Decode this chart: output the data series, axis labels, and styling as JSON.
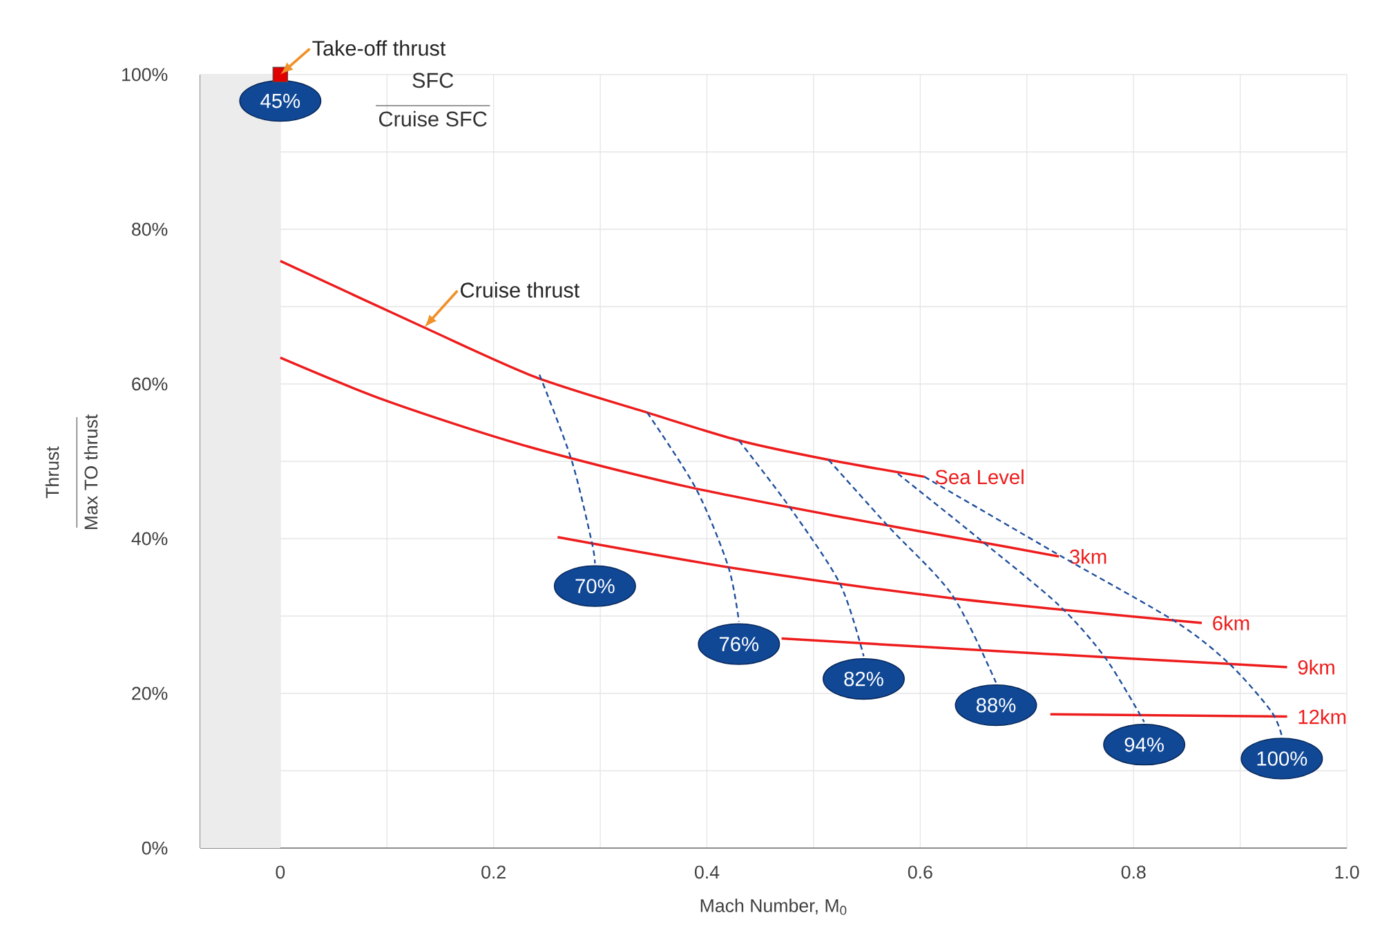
{
  "chart_data": {
    "type": "line",
    "xlabel": "Mach Number, M$_{0}$",
    "ylabel": "Thrust",
    "xlim": [
      -0.075,
      1.0
    ],
    "ylim": [
      0,
      100
    ],
    "xticks": [
      0,
      {
        "value": 0.1,
        "label": null
      },
      0.2,
      {
        "value": 0.3,
        "label": null
      },
      0.4,
      {
        "value": 0.5,
        "label": null
      },
      0.6,
      {
        "value": 0.7,
        "label": null
      },
      0.8,
      {
        "value": 0.9,
        "label": null
      },
      {
        "value": 1.0,
        "label": "1.0"
      }
    ],
    "yticks": [
      {
        "value": 0,
        "label": "0%"
      },
      {
        "value": 10,
        "label": null
      },
      {
        "value": 20,
        "label": "20%"
      },
      {
        "value": 30,
        "label": null
      },
      {
        "value": 40,
        "label": "40%"
      },
      {
        "value": 50,
        "label": null
      },
      {
        "value": 60,
        "label": "60%"
      },
      {
        "value": 70,
        "label": null
      },
      {
        "value": 80,
        "label": "80%"
      },
      {
        "value": 90,
        "label": null
      },
      {
        "value": 100,
        "label": "100%"
      }
    ],
    "grid": true,
    "marker": "none",
    "bands": [
      {
        "axis": "x",
        "from": -0.075,
        "to": 0,
        "color": "#ececec"
      }
    ],
    "series": [
      {
        "name": "Sea Level",
        "color": "#ee1c1c",
        "line_style": "solid",
        "x": [
          0,
          0.135,
          0.239,
          0.344,
          0.43,
          0.514,
          0.604
        ],
        "values": [
          75.9,
          67.3,
          60.9,
          56.3,
          52.7,
          50.2,
          48.0
        ]
      },
      {
        "name": "3km",
        "color": "#ee1c1c",
        "line_style": "solid",
        "x": [
          0,
          0.1,
          0.23,
          0.379,
          0.53,
          0.655,
          0.73
        ],
        "values": [
          63.4,
          57.8,
          52.0,
          46.8,
          42.7,
          39.6,
          37.7
        ]
      },
      {
        "name": "6km",
        "color": "#ee1c1c",
        "line_style": "solid",
        "x": [
          0.26,
          0.43,
          0.63,
          0.864
        ],
        "values": [
          40.2,
          36.1,
          32.3,
          29.1
        ]
      },
      {
        "name": "9km",
        "color": "#ee1c1c",
        "line_style": "solid",
        "x": [
          0.47,
          0.68,
          0.944
        ],
        "values": [
          27.1,
          25.4,
          23.4
        ]
      },
      {
        "name": "12km",
        "color": "#ee1c1c",
        "line_style": "solid",
        "x": [
          0.722,
          0.944
        ],
        "values": [
          17.3,
          17.0
        ]
      },
      {
        "name": "70%",
        "color": "#1f4f9c",
        "line_style": "dashed",
        "x": [
          0.243,
          0.273,
          0.292,
          0.295
        ],
        "values": [
          61.2,
          50.2,
          39.6,
          36.8
        ]
      },
      {
        "name": "76%",
        "color": "#1f4f9c",
        "line_style": "dashed",
        "x": [
          0.344,
          0.39,
          0.42,
          0.43
        ],
        "values": [
          56.3,
          46.4,
          36.4,
          29.3
        ]
      },
      {
        "name": "82%",
        "color": "#1f4f9c",
        "line_style": "dashed",
        "x": [
          0.43,
          0.479,
          0.525,
          0.547
        ],
        "values": [
          52.7,
          43.8,
          34.1,
          24.8
        ]
      },
      {
        "name": "88%",
        "color": "#1f4f9c",
        "line_style": "dashed",
        "x": [
          0.514,
          0.57,
          0.63,
          0.671
        ],
        "values": [
          50.2,
          41.6,
          32.7,
          21.4
        ]
      },
      {
        "name": "94%",
        "color": "#1f4f9c",
        "line_style": "dashed",
        "x": [
          0.579,
          0.655,
          0.73,
          0.774,
          0.81
        ],
        "values": [
          48.4,
          40.0,
          31.4,
          24.5,
          16.3
        ]
      },
      {
        "name": "100%",
        "color": "#1f4f9c",
        "line_style": "dashed",
        "x": [
          0.604,
          0.73,
          0.839,
          0.89,
          0.929,
          0.939
        ],
        "values": [
          48.0,
          37.9,
          29.3,
          23.8,
          17.7,
          14.5
        ]
      },
      {
        "name": "45%",
        "type": "scatter",
        "marker": "square",
        "color": "#e00000",
        "x": [
          0
        ],
        "values": [
          100
        ]
      }
    ],
    "annotations": [
      {
        "text": "Take-off thrust",
        "x": 0,
        "y": 100
      },
      {
        "text": "Cruise thrust",
        "x": 0.135,
        "y": 67.3
      },
      "Max TO thrust",
      "SFC",
      "Cruise SFC"
    ]
  }
}
